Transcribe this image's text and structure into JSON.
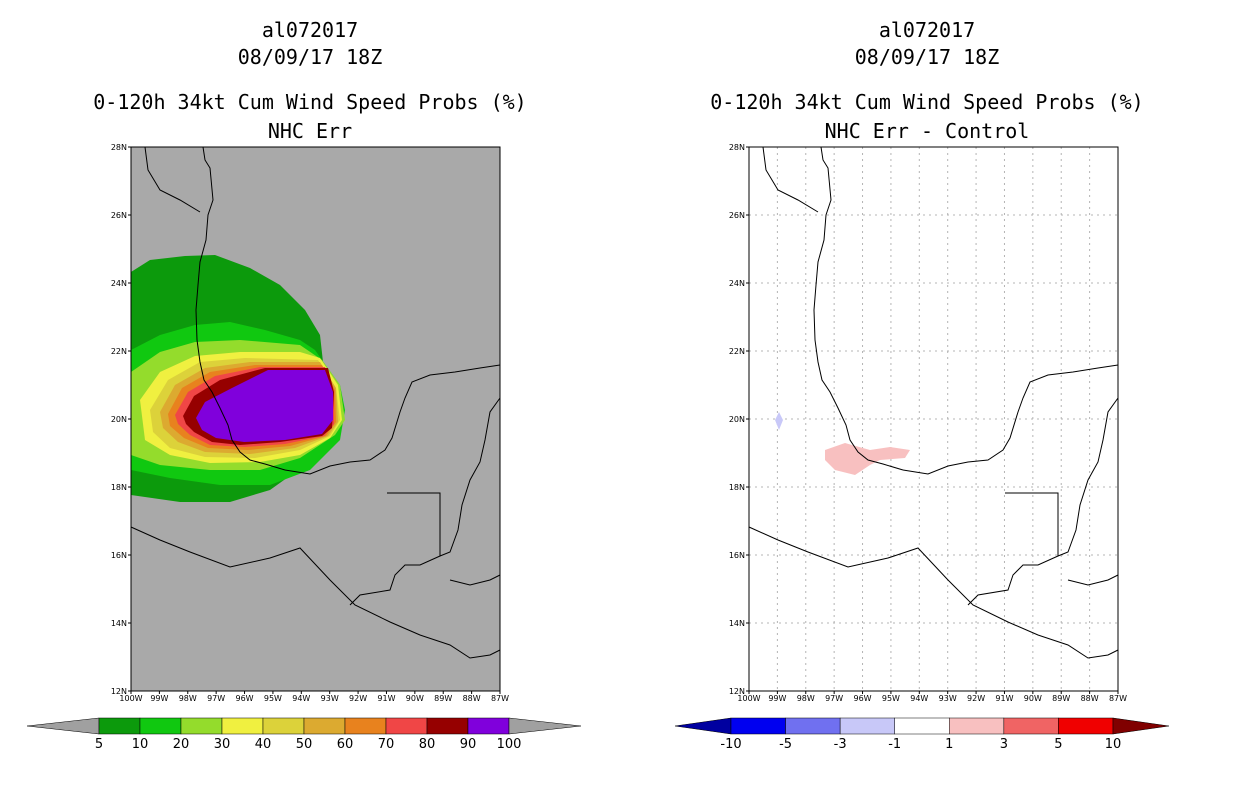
{
  "left_panel": {
    "title_line1": "al072017",
    "title_line2": "08/09/17 18Z",
    "title_line3": "0-120h 34kt Cum Wind Speed Probs (%)",
    "title_line4": "NHC Err",
    "background_color": "#a9a9a9",
    "colorbar": {
      "labels": [
        "5",
        "10",
        "20",
        "30",
        "40",
        "50",
        "60",
        "70",
        "80",
        "90",
        "100"
      ],
      "colors": [
        "#a0a0a0",
        "#0c9a0c",
        "#10c810",
        "#94dc2c",
        "#f0f040",
        "#dcd23a",
        "#dcaa30",
        "#e8821e",
        "#f04646",
        "#960000",
        "#8000dc",
        "#a0a0a0"
      ]
    }
  },
  "right_panel": {
    "title_line1": "al072017",
    "title_line2": "08/09/17 18Z",
    "title_line3": "0-120h 34kt Cum Wind Speed Probs (%)",
    "title_line4": "NHC Err - Control",
    "colorbar": {
      "labels": [
        "-10",
        "-5",
        "-3",
        "-1",
        "1",
        "3",
        "5",
        "10"
      ],
      "colors": [
        "#0000a0",
        "#0000f0",
        "#7070f0",
        "#c8c8f8",
        "#ffffff",
        "#f8c0c0",
        "#f06464",
        "#f00000",
        "#800000"
      ]
    }
  },
  "map": {
    "lat_labels": [
      "28N",
      "26N",
      "24N",
      "22N",
      "20N",
      "18N",
      "16N",
      "14N",
      "12N"
    ],
    "lon_labels": [
      "100W",
      "99W",
      "98W",
      "97W",
      "96W",
      "95W",
      "94W",
      "93W",
      "92W",
      "91W",
      "90W",
      "89W",
      "88W",
      "87W"
    ]
  }
}
